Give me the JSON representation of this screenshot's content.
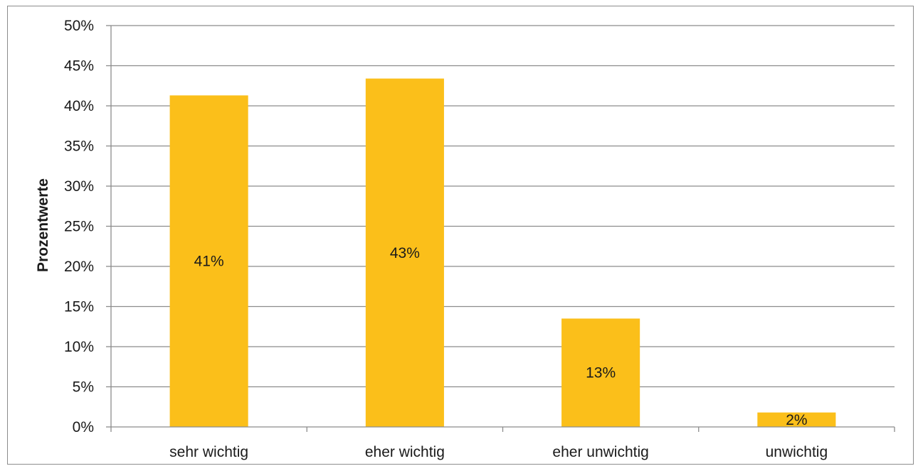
{
  "chart_data": {
    "type": "bar",
    "title": "",
    "xlabel": "",
    "ylabel": "Prozentwerte",
    "categories": [
      "sehr wichtig",
      "eher wichtig",
      "eher unwichtig",
      "unwichtig"
    ],
    "values": [
      41.3,
      43.4,
      13.5,
      1.8
    ],
    "data_labels": [
      "41%",
      "43%",
      "13%",
      "2%"
    ],
    "ylim": [
      0,
      50
    ],
    "yticks": [
      0,
      5,
      10,
      15,
      20,
      25,
      30,
      35,
      40,
      45,
      50
    ],
    "ytick_labels": [
      "0%",
      "5%",
      "10%",
      "15%",
      "20%",
      "25%",
      "30%",
      "35%",
      "40%",
      "45%",
      "50%"
    ],
    "grid": true,
    "legend": "none",
    "bar_color": "#FBBF1A",
    "grid_color": "#8c8c8c"
  }
}
